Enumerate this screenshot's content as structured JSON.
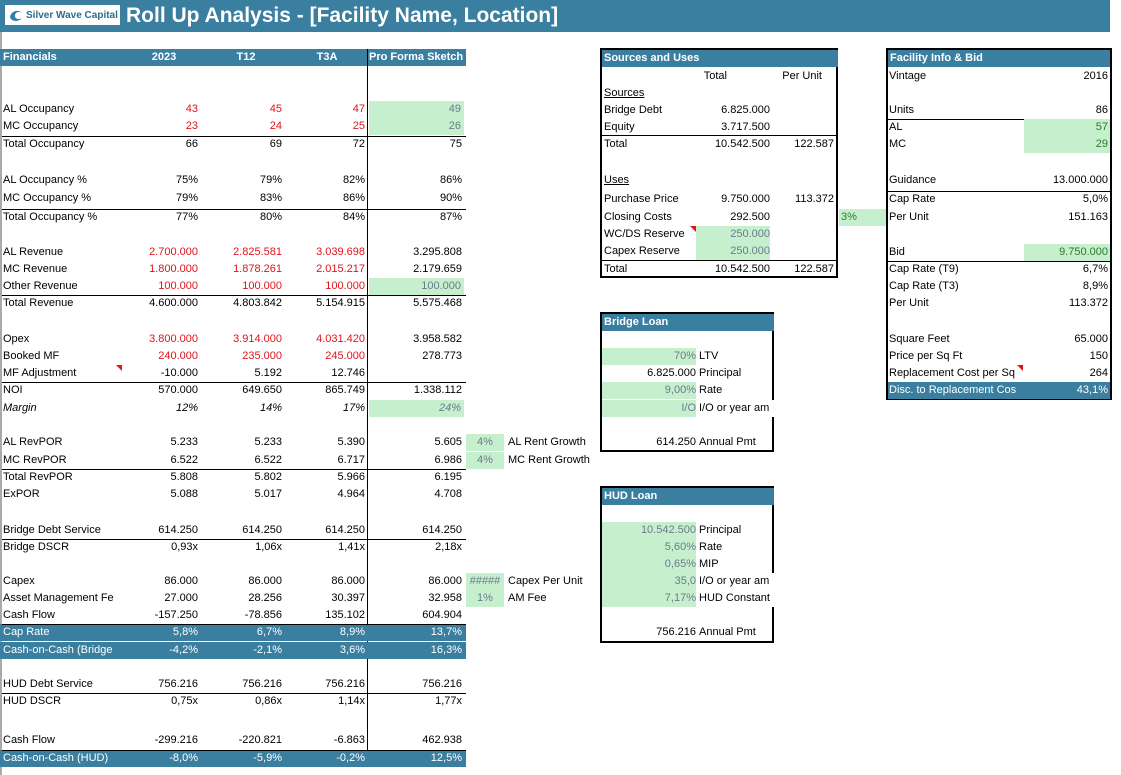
{
  "header": {
    "logo_text": "Silver Wave Capital",
    "title": "Roll Up Analysis - [Facility Name, Location]"
  },
  "financials": {
    "title": "Financials",
    "columns": [
      "2023",
      "T12",
      "T3A",
      "Pro Forma Sketch"
    ],
    "rows": {
      "al_occ": {
        "label": "AL Occupancy",
        "values": [
          "43",
          "45",
          "47",
          "49"
        ]
      },
      "mc_occ": {
        "label": "MC Occupancy",
        "values": [
          "23",
          "24",
          "25",
          "26"
        ]
      },
      "tot_occ": {
        "label": "Total Occupancy",
        "values": [
          "66",
          "69",
          "72",
          "75"
        ]
      },
      "al_occ_pct": {
        "label": "AL Occupancy %",
        "values": [
          "75%",
          "79%",
          "82%",
          "86%"
        ]
      },
      "mc_occ_pct": {
        "label": "MC Occupancy %",
        "values": [
          "79%",
          "83%",
          "86%",
          "90%"
        ]
      },
      "tot_occ_pct": {
        "label": "Total Occupancy %",
        "values": [
          "77%",
          "80%",
          "84%",
          "87%"
        ]
      },
      "al_rev": {
        "label": "AL Revenue",
        "values": [
          "2.700.000",
          "2.825.581",
          "3.039.698",
          "3.295.808"
        ]
      },
      "mc_rev": {
        "label": "MC Revenue",
        "values": [
          "1.800.000",
          "1.878.261",
          "2.015.217",
          "2.179.659"
        ]
      },
      "oth_rev": {
        "label": "Other Revenue",
        "values": [
          "100.000",
          "100.000",
          "100.000",
          "100.000"
        ]
      },
      "tot_rev": {
        "label": "Total Revenue",
        "values": [
          "4.600.000",
          "4.803.842",
          "5.154.915",
          "5.575.468"
        ]
      },
      "opex": {
        "label": "Opex",
        "values": [
          "3.800.000",
          "3.914.000",
          "4.031.420",
          "3.958.582"
        ]
      },
      "booked_mf": {
        "label": "Booked MF",
        "values": [
          "240.000",
          "235.000",
          "245.000",
          "278.773"
        ]
      },
      "mf_adj": {
        "label": "MF Adjustment",
        "values": [
          "-10.000",
          "5.192",
          "12.746",
          ""
        ]
      },
      "noi": {
        "label": "NOI",
        "values": [
          "570.000",
          "649.650",
          "865.749",
          "1.338.112"
        ]
      },
      "margin": {
        "label": "Margin",
        "values": [
          "12%",
          "14%",
          "17%",
          "24%"
        ]
      },
      "al_revpor": {
        "label": "AL RevPOR",
        "values": [
          "5.233",
          "5.233",
          "5.390",
          "5.605"
        ]
      },
      "mc_revpor": {
        "label": "MC RevPOR",
        "values": [
          "6.522",
          "6.522",
          "6.717",
          "6.986"
        ]
      },
      "tot_revpor": {
        "label": "Total RevPOR",
        "values": [
          "5.808",
          "5.802",
          "5.966",
          "6.195"
        ]
      },
      "expor": {
        "label": "ExPOR",
        "values": [
          "5.088",
          "5.017",
          "4.964",
          "4.708"
        ]
      },
      "bridge_ds": {
        "label": "Bridge Debt Service",
        "values": [
          "614.250",
          "614.250",
          "614.250",
          "614.250"
        ]
      },
      "bridge_dscr": {
        "label": "Bridge DSCR",
        "values": [
          "0,93x",
          "1,06x",
          "1,41x",
          "2,18x"
        ]
      },
      "capex": {
        "label": "Capex",
        "values": [
          "86.000",
          "86.000",
          "86.000",
          "86.000"
        ]
      },
      "am_fee": {
        "label": "Asset Management Fe",
        "values": [
          "27.000",
          "28.256",
          "30.397",
          "32.958"
        ]
      },
      "cash_flow_bridge": {
        "label": "Cash Flow",
        "values": [
          "-157.250",
          "-78.856",
          "135.102",
          "604.904"
        ]
      },
      "cap_rate": {
        "label": "Cap Rate",
        "values": [
          "5,8%",
          "6,7%",
          "8,9%",
          "13,7%"
        ]
      },
      "coc_bridge": {
        "label": "Cash-on-Cash (Bridge",
        "values": [
          "-4,2%",
          "-2,1%",
          "3,6%",
          "16,3%"
        ]
      },
      "hud_ds": {
        "label": "HUD Debt Service",
        "values": [
          "756.216",
          "756.216",
          "756.216",
          "756.216"
        ]
      },
      "hud_dscr": {
        "label": "HUD DSCR",
        "values": [
          "0,75x",
          "0,86x",
          "1,14x",
          "1,77x"
        ]
      },
      "cash_flow_hud": {
        "label": "Cash Flow",
        "values": [
          "-299.216",
          "-220.821",
          "-6.863",
          "462.938"
        ]
      },
      "coc_hud": {
        "label": "Cash-on-Cash (HUD)",
        "values": [
          "-8,0%",
          "-5,9%",
          "-0,2%",
          "12,5%"
        ]
      }
    },
    "assumptions": {
      "al_rent_growth": {
        "value": "4%",
        "label": "AL Rent Growth"
      },
      "mc_rent_growth": {
        "value": "4%",
        "label": "MC Rent Growth"
      },
      "capex_per_unit": {
        "value": "#####",
        "label": "Capex Per Unit"
      },
      "am_fee": {
        "value": "1%",
        "label": "AM Fee"
      }
    }
  },
  "sources_uses": {
    "title": "Sources and Uses",
    "col_total": "Total",
    "col_per_unit": "Per Unit",
    "sources_label": "Sources",
    "bridge_debt": {
      "label": "Bridge Debt",
      "total": "6.825.000"
    },
    "equity": {
      "label": "Equity",
      "total": "3.717.500"
    },
    "sources_total": {
      "label": "Total",
      "total": "10.542.500",
      "per_unit": "122.587"
    },
    "uses_label": "Uses",
    "purchase_price": {
      "label": "Purchase Price",
      "total": "9.750.000",
      "per_unit": "113.372"
    },
    "closing_costs": {
      "label": "Closing Costs",
      "total": "292.500",
      "pct": "3%"
    },
    "wc_reserve": {
      "label": "WC/DS Reserve",
      "total": "250.000"
    },
    "capex_reserve": {
      "label": "Capex Reserve",
      "total": "250.000"
    },
    "uses_total": {
      "label": "Total",
      "total": "10.542.500",
      "per_unit": "122.587"
    }
  },
  "bridge_loan": {
    "title": "Bridge Loan",
    "ltv": {
      "value": "70%",
      "label": "LTV"
    },
    "principal": {
      "value": "6.825.000",
      "label": "Principal"
    },
    "rate": {
      "value": "9,00%",
      "label": "Rate"
    },
    "amort": {
      "value": "I/O",
      "label": "I/O or year am"
    },
    "annual_pmt": {
      "value": "614.250",
      "label": "Annual Pmt"
    }
  },
  "hud_loan": {
    "title": "HUD Loan",
    "principal": {
      "value": "10.542.500",
      "label": "Principal"
    },
    "rate": {
      "value": "5,60%",
      "label": "Rate"
    },
    "mip": {
      "value": "0,65%",
      "label": "MIP"
    },
    "amort": {
      "value": "35,0",
      "label": "I/O or year am"
    },
    "constant": {
      "value": "7,17%",
      "label": "HUD Constant"
    },
    "annual_pmt": {
      "value": "756.216",
      "label": "Annual Pmt"
    }
  },
  "facility": {
    "title": "Facility Info & Bid",
    "vintage": {
      "label": "Vintage",
      "value": "2016"
    },
    "units": {
      "label": "Units",
      "value": "86"
    },
    "al": {
      "label": "AL",
      "value": "57"
    },
    "mc": {
      "label": "MC",
      "value": "29"
    },
    "guidance": {
      "label": "Guidance",
      "value": "13.000.000"
    },
    "guidance_cap": {
      "label": "Cap Rate",
      "value": "5,0%"
    },
    "guidance_per_unit": {
      "label": "Per Unit",
      "value": "151.163"
    },
    "bid": {
      "label": "Bid",
      "value": "9.750.000"
    },
    "cap_t9": {
      "label": "Cap Rate (T9)",
      "value": "6,7%"
    },
    "cap_t3": {
      "label": "Cap Rate (T3)",
      "value": "8,9%"
    },
    "bid_per_unit": {
      "label": "Per Unit",
      "value": "113.372"
    },
    "sqft": {
      "label": "Square Feet",
      "value": "65.000"
    },
    "price_sqft": {
      "label": "Price per Sq Ft",
      "value": "150"
    },
    "repl_cost": {
      "label": "Replacement Cost per Sq",
      "value": "264"
    },
    "disc_repl": {
      "label": "Disc. to Replacement Cos",
      "value": "43,1%"
    }
  },
  "colors": {
    "header_blue": "#3a7fa0",
    "input_green": "#c6efce",
    "hardcode_red": "#e0141b"
  }
}
